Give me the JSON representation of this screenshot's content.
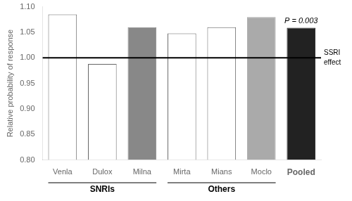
{
  "chart_data": {
    "type": "bar",
    "categories": [
      "Venla",
      "Dulox",
      "Milna",
      "Mirta",
      "Mians",
      "Moclo",
      "Pooled"
    ],
    "values": [
      1.085,
      0.988,
      1.06,
      1.048,
      1.06,
      1.08,
      1.059
    ],
    "colors": [
      "white",
      "white",
      "#888888",
      "white",
      "white",
      "#aaaaaa",
      "#222222"
    ],
    "ylabel": "Relative probability of response",
    "ylim": [
      0.8,
      1.1
    ],
    "yticks": [
      {
        "value": 0.8,
        "label": "0.80"
      },
      0.85,
      {
        "value": 0.9,
        "label": "0.90"
      },
      0.95,
      {
        "value": 1.0,
        "label": "1.00"
      },
      1.05,
      {
        "value": 1.1,
        "label": "1.10"
      }
    ],
    "grid": false,
    "reference_line": {
      "value": 1.0,
      "label": [
        "SSRI",
        "effect"
      ]
    },
    "annotations": [
      {
        "text": "P = 0.003",
        "category": "Pooled"
      }
    ],
    "groups": [
      {
        "name": "SNRIs",
        "categories": [
          "Venla",
          "Dulox",
          "Milna"
        ]
      },
      {
        "name": "Others",
        "categories": [
          "Mirta",
          "Mians",
          "Moclo"
        ]
      }
    ]
  }
}
